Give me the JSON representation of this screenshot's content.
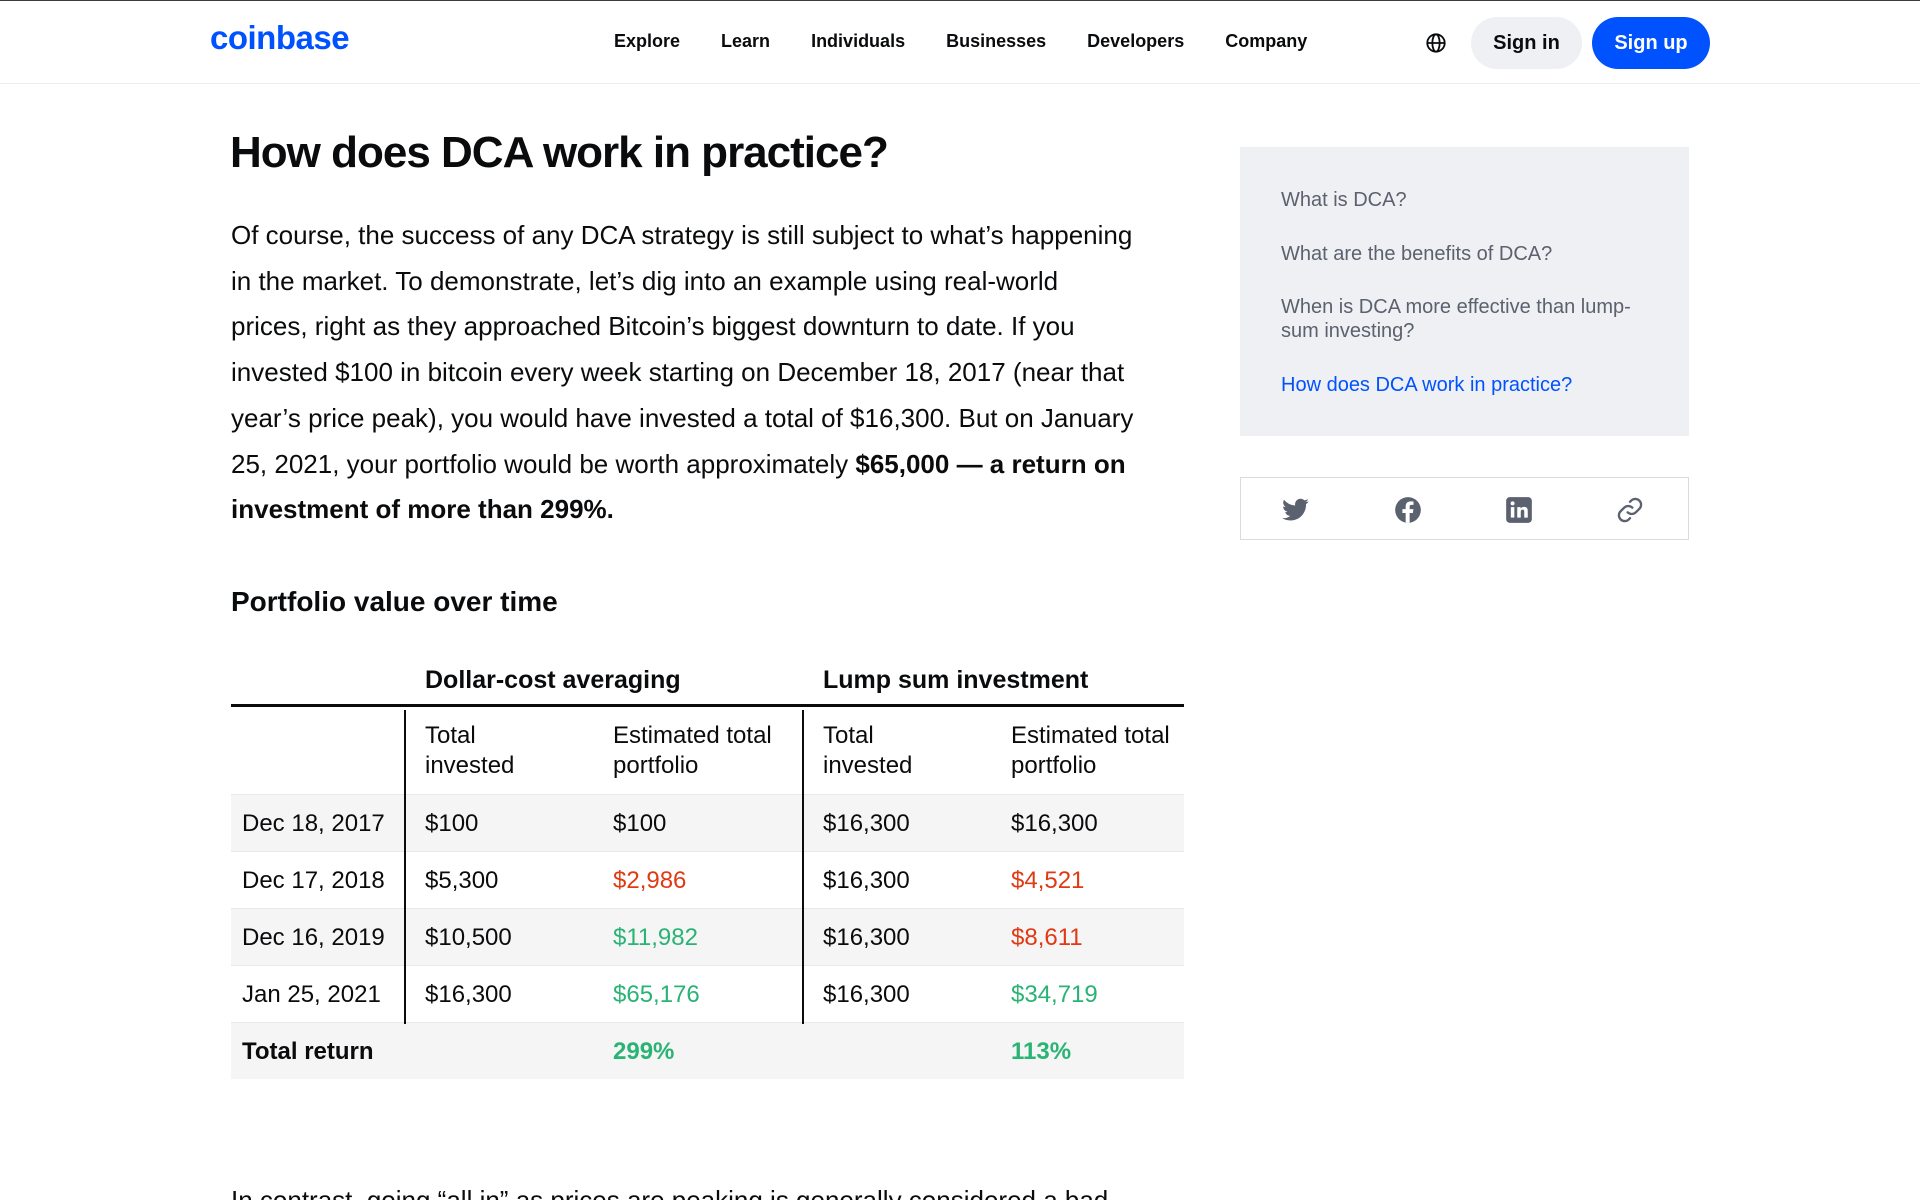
{
  "header": {
    "logo": "coinbase",
    "nav": [
      "Explore",
      "Learn",
      "Individuals",
      "Businesses",
      "Developers",
      "Company"
    ],
    "globe_icon": "globe-icon",
    "sign_in": "Sign in",
    "sign_up": "Sign up",
    "brand_color": "#0052ff"
  },
  "article": {
    "title": "How does DCA work in practice?",
    "paragraph_lines": [
      "Of course, the success of any DCA strategy is still subject to what’s happening",
      "in the market. To demonstrate, let’s dig into an example using real-world",
      "prices, right as they approached Bitcoin’s biggest downturn to date. If you",
      "invested $100 in bitcoin every week starting on December 18, 2017 (near that",
      "year’s price peak), you would have invested a total of $16,300. But on January"
    ],
    "line6_regular": "25, 2021, your portfolio would be worth approximately ",
    "line6_bold": "$65,000 — a return on",
    "line7_bold": "investment of more than 299%.",
    "table_heading": "Portfolio value over time",
    "next_paragraph_partial": "In contrast, going “all in” as prices are peaking is generally considered a bad"
  },
  "table": {
    "group_dca": "Dollar-cost averaging",
    "group_lump": "Lump sum investment",
    "col_total_line1": "Total",
    "col_total_line2": "invested",
    "col_est_line1": "Estimated total",
    "col_est_line2": "portfolio",
    "rows": [
      {
        "date": "Dec 18, 2017",
        "dca_invested": "$100",
        "dca_portfolio": "$100",
        "lump_invested": "$16,300",
        "lump_portfolio": "$16,300"
      },
      {
        "date": "Dec 17, 2018",
        "dca_invested": "$5,300",
        "dca_portfolio": "$2,986",
        "lump_invested": "$16,300",
        "lump_portfolio": "$4,521"
      },
      {
        "date": "Dec 16, 2019",
        "dca_invested": "$10,500",
        "dca_portfolio": "$11,982",
        "lump_invested": "$16,300",
        "lump_portfolio": "$8,611"
      },
      {
        "date": "Jan 25, 2021",
        "dca_invested": "$16,300",
        "dca_portfolio": "$65,176",
        "lump_invested": "$16,300",
        "lump_portfolio": "$34,719"
      }
    ],
    "total_label": "Total return",
    "total_dca": "299%",
    "total_lump": "113%",
    "loss_color": "#e03a14",
    "gain_color": "#29b374"
  },
  "sidebar": {
    "toc": [
      "What is DCA?",
      "What are the benefits of DCA?",
      "When is DCA more effective than lump-sum investing?",
      "How does DCA work in practice?"
    ],
    "active_index": 3,
    "share_icons": [
      "twitter-icon",
      "facebook-icon",
      "linkedin-icon",
      "link-icon"
    ]
  }
}
